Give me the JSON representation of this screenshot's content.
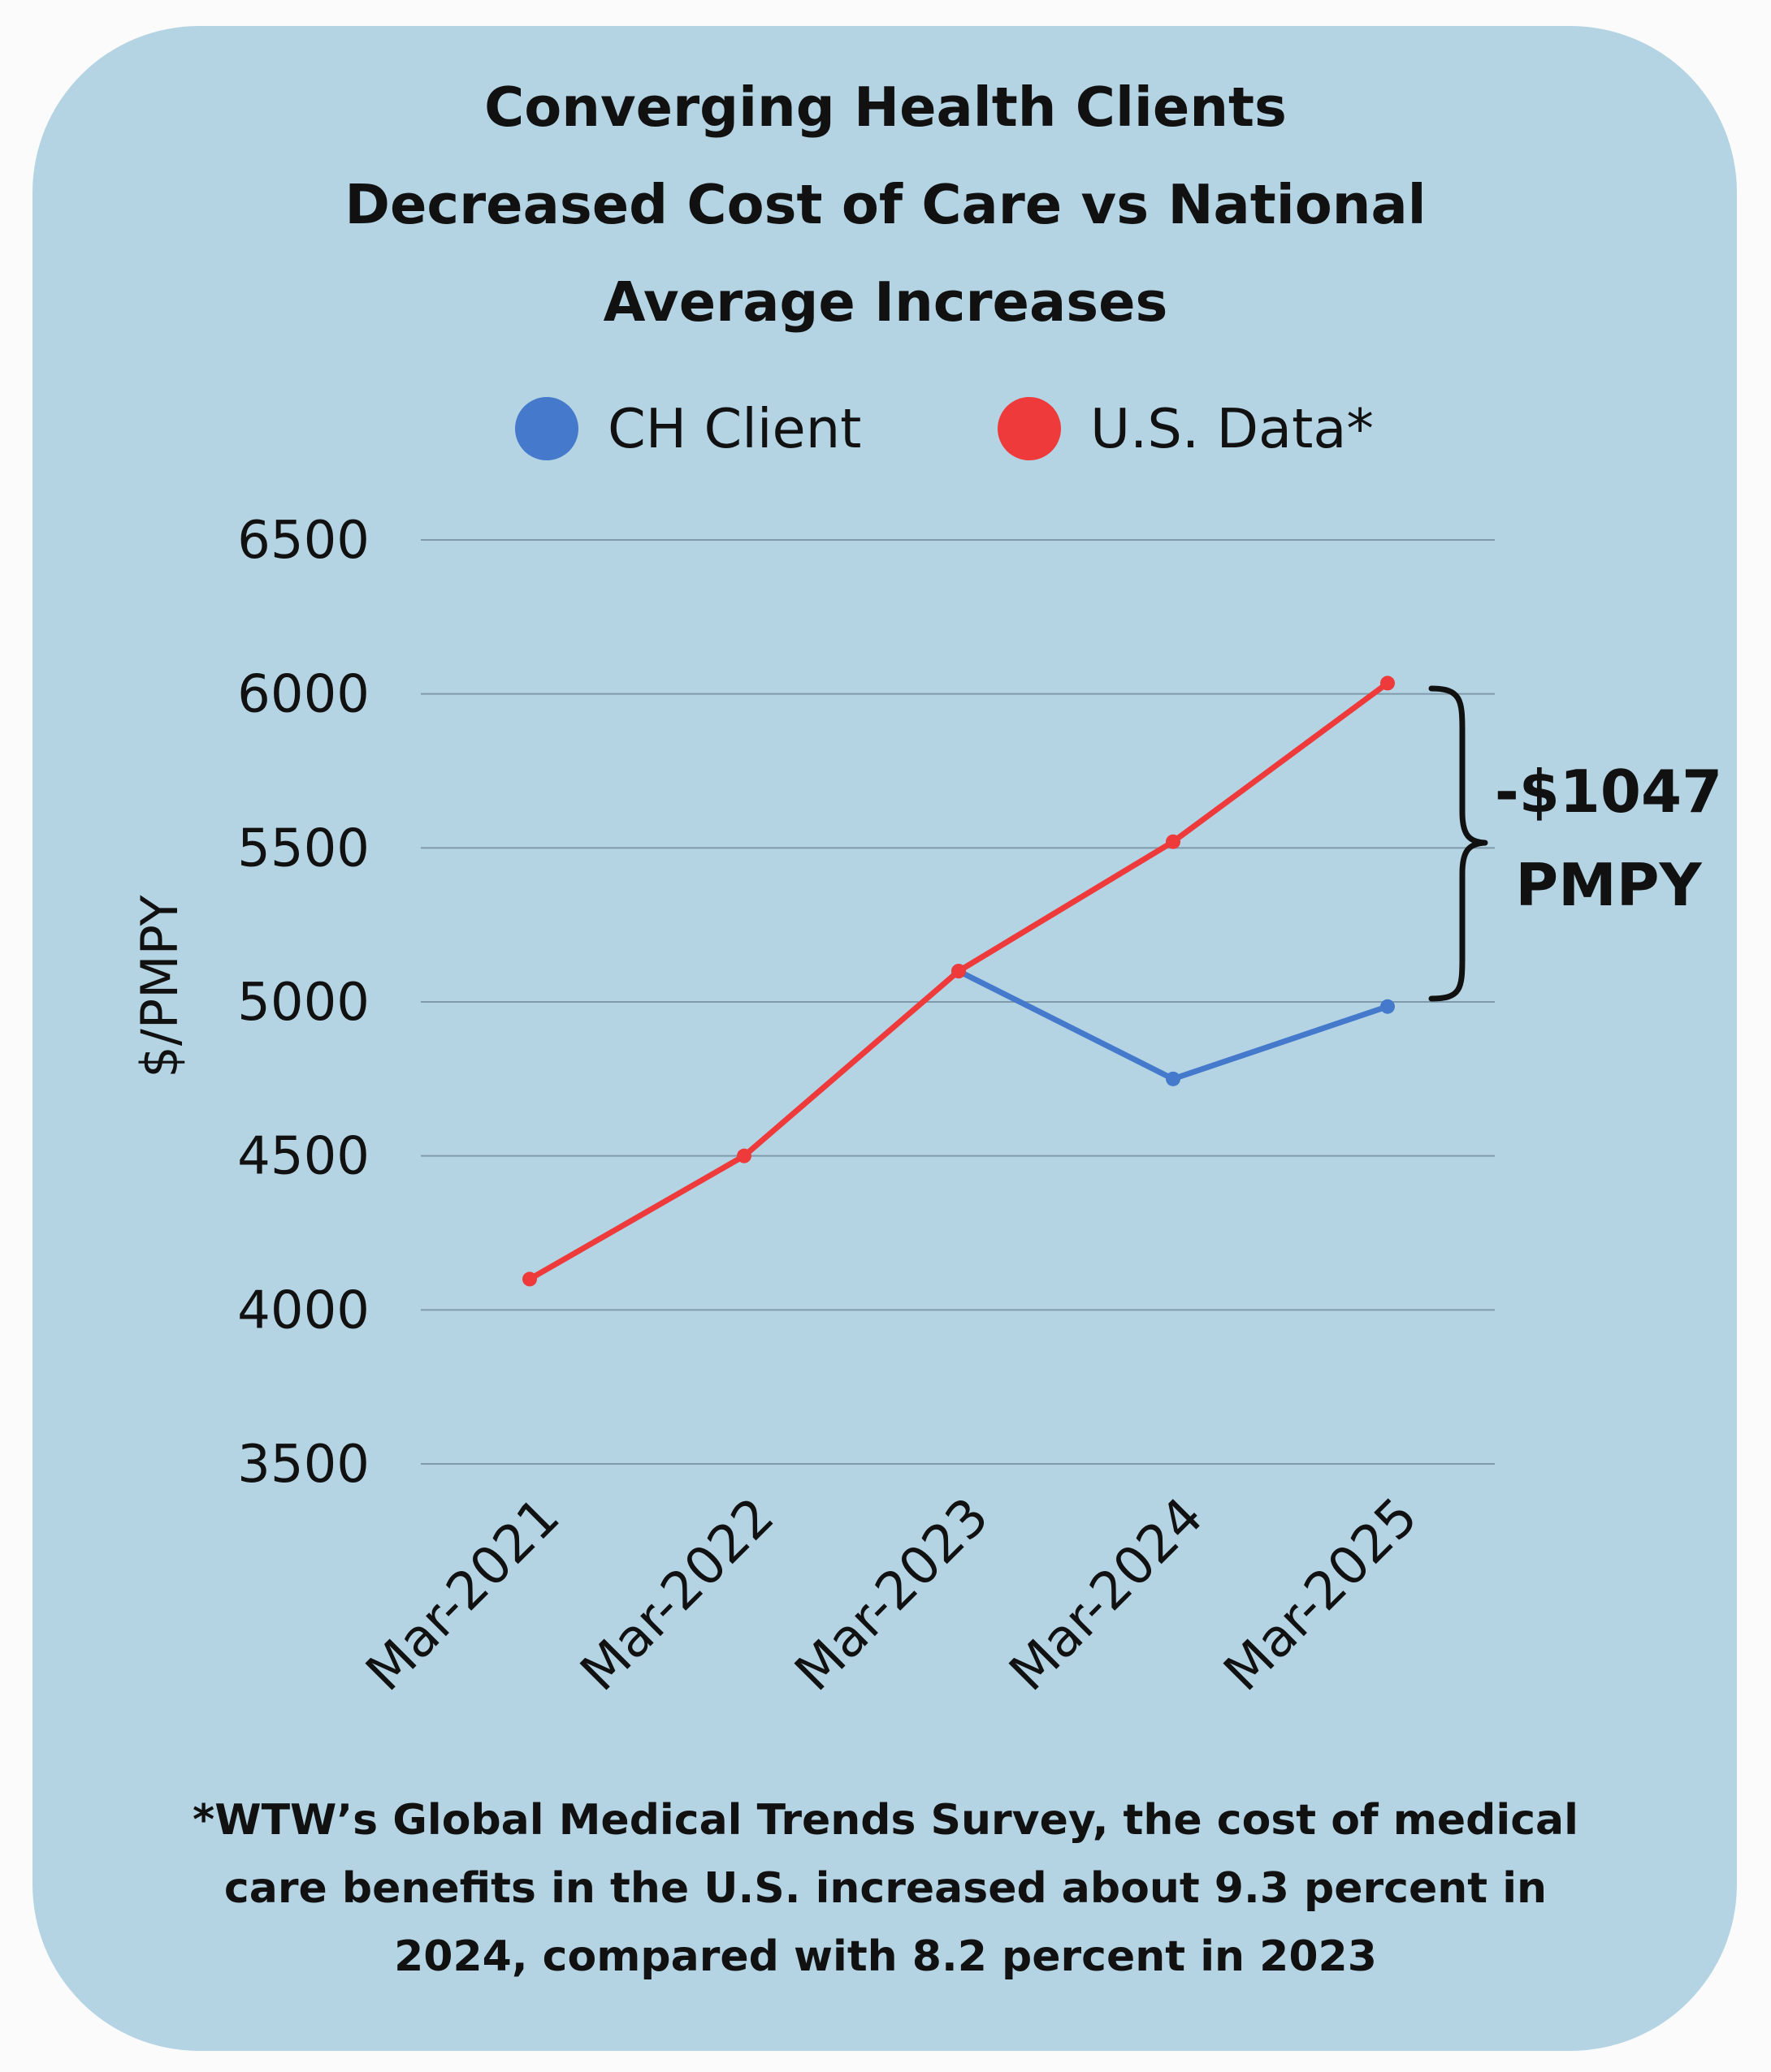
{
  "title_lines": [
    "Converging Health Clients",
    "Decreased Cost of Care vs National",
    "Average Increases"
  ],
  "legend": [
    {
      "label": "CH Client",
      "color": "#4479cc"
    },
    {
      "label": "U.S. Data*",
      "color": "#ee3a3a"
    }
  ],
  "annotation": {
    "value_label": "-$1047",
    "unit_label": "PMPY"
  },
  "footnote_lines": [
    "*WTW’s Global Medical Trends Survey, the cost of medical",
    "care benefits in the U.S. increased about 9.3 percent in",
    "2024, compared with 8.2 percent in 2023"
  ],
  "colors": {
    "background": "#b4d4e4",
    "grid": "#7f9aaa",
    "text": "#111111"
  },
  "chart_data": {
    "type": "line",
    "title": "Converging Health Clients Decreased Cost of Care vs National Average Increases",
    "xlabel": "",
    "ylabel": "$/PMPY",
    "categories": [
      "Mar-2021",
      "Mar-2022",
      "Mar-2023",
      "Mar-2024",
      "Mar-2025"
    ],
    "ylim": [
      3500,
      6500
    ],
    "yticks": [
      "6500",
      "6000",
      "5500",
      "5000",
      "4500",
      "4000",
      "3500"
    ],
    "grid": true,
    "legend_position": "top",
    "series": [
      {
        "name": "CH Client",
        "color": "#4479cc",
        "values": [
          null,
          null,
          5100,
          4750,
          4985
        ]
      },
      {
        "name": "U.S. Data*",
        "color": "#ee3a3a",
        "values": [
          4100,
          4500,
          5100,
          5520,
          6035
        ]
      }
    ]
  }
}
